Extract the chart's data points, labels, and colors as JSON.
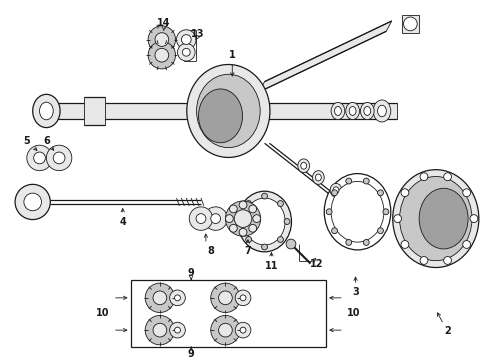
{
  "bg_color": "#ffffff",
  "lc": "#1a1a1a",
  "fig_width": 4.9,
  "fig_height": 3.6,
  "dpi": 100,
  "lw_thin": 0.6,
  "lw_med": 0.9,
  "lw_thick": 1.5,
  "gray_light": "#e8e8e8",
  "gray_mid": "#c8c8c8",
  "gray_dark": "#a0a0a0",
  "label_fs": 7.0
}
